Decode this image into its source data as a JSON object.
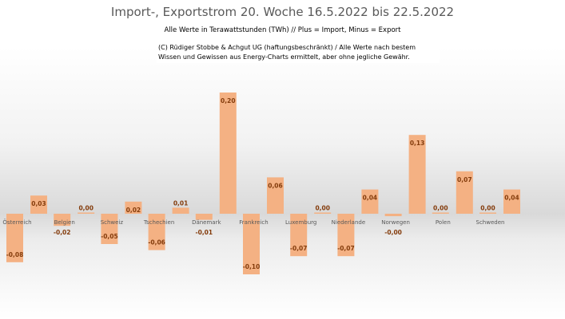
{
  "chart_data": {
    "type": "bar",
    "title": "Import-, Exportstrom 20. Woche 16.5.2022 bis 22.5.2022",
    "subtitle": "Alle Werte in Terawattstunden (TWh) // Plus = Import, Minus = Export",
    "note": "(C) Rüdiger Stobbe & Achgut UG (haftungsbeschränkt) / Alle Werte nach bestem Wissen und Gewissen aus Energy-Charts ermittelt, aber ohne jegliche Gewähr.",
    "categories": [
      "Österreich",
      "Belgien",
      "Schweiz",
      "Tschechien",
      "Dänemark",
      "Frankreich",
      "Luxemburg",
      "Niederlande",
      "Norwegen",
      "Polen",
      "Schweden"
    ],
    "series": [
      {
        "name": "Export",
        "values": [
          -0.08,
          -0.02,
          -0.05,
          -0.06,
          -0.01,
          -0.1,
          -0.07,
          -0.07,
          -0.004,
          0.0,
          0.0
        ],
        "labels": [
          "-0,08",
          "-0,02",
          "-0,05",
          "-0,06",
          "-0,01",
          "-0,10",
          "-0,07",
          "-0,07",
          "-0,00",
          "0,00",
          "0,00"
        ]
      },
      {
        "name": "Import",
        "values": [
          0.03,
          0.002,
          0.02,
          0.01,
          0.2,
          0.06,
          0.0,
          0.04,
          0.13,
          0.07,
          0.04
        ],
        "labels": [
          "0,03",
          "0,00",
          "0,02",
          "0,01",
          "0,20",
          "0,06",
          "0,00",
          "0,04",
          "0,13",
          "0,07",
          "0,04"
        ]
      }
    ],
    "ylim": [
      -0.1,
      0.2
    ],
    "grid": false,
    "legend": "none",
    "bar_color": "#f4b183",
    "label_color": "#843c0c"
  }
}
